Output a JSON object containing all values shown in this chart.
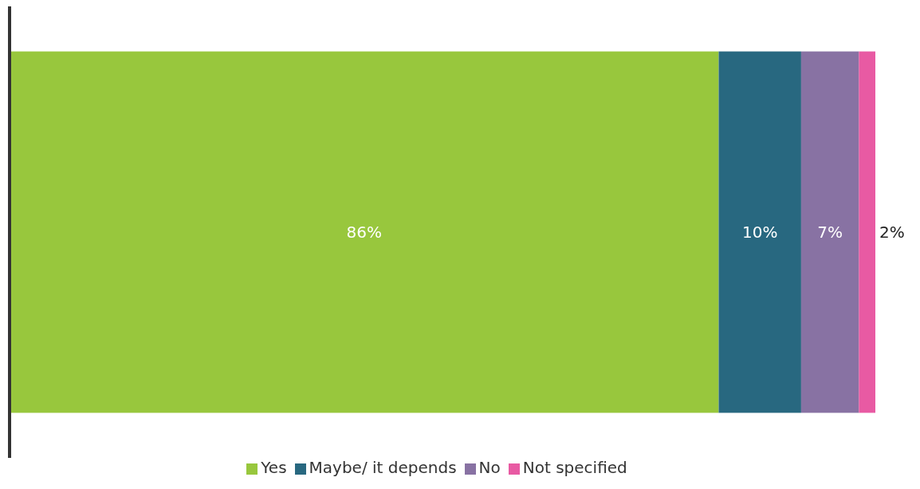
{
  "chart_data": {
    "type": "bar",
    "orientation": "horizontal",
    "stacked": true,
    "categories": [
      null
    ],
    "series": [
      {
        "name": "Yes",
        "color": "#98c73d",
        "values": [
          86
        ],
        "value_labels": [
          "86%"
        ]
      },
      {
        "name": "Maybe/ it depends",
        "color": "#286880",
        "values": [
          10
        ],
        "value_labels": [
          "10%"
        ]
      },
      {
        "name": "No",
        "color": "#8872a3",
        "values": [
          7
        ],
        "value_labels": [
          "7%"
        ]
      },
      {
        "name": "Not specified",
        "color": "#e85aa3",
        "values": [
          2
        ],
        "value_labels": [
          "2%"
        ]
      }
    ],
    "legend": "bottom"
  }
}
